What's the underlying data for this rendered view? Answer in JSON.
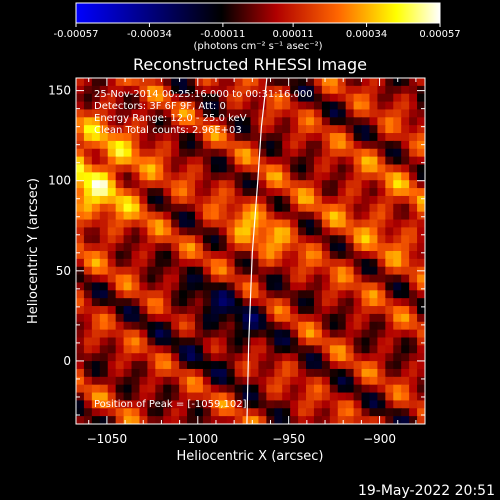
{
  "chart_data": {
    "type": "heatmap",
    "title": "Reconstructed RHESSI Image",
    "xlabel": "Heliocentric X (arcsec)",
    "ylabel": "Heliocentric Y (arcsec)",
    "xlim": [
      -1067,
      -875
    ],
    "ylim": [
      -35,
      157
    ],
    "x_ticks": [
      -1050,
      -1000,
      -950,
      -900
    ],
    "y_ticks": [
      0,
      50,
      100,
      150
    ],
    "colorbar": {
      "colormap": "blue-black-red-yellow-white (symmetric)",
      "range": [
        -0.00057,
        0.00057
      ],
      "tick_values": [
        -0.00057,
        -0.00034,
        -0.00011,
        0.00011,
        0.00034,
        0.00057
      ],
      "tick_labels": [
        "-0.00057",
        "-0.00034",
        "-0.00011",
        "0.00011",
        "0.00034",
        "0.00057"
      ],
      "unit_label": "(photons cm⁻² s⁻¹ asec⁻²)",
      "colors": [
        "#0000ff",
        "#000000",
        "#b00000",
        "#ff6600",
        "#ffff00",
        "#ffffff"
      ]
    },
    "annotations": [
      "25-Nov-2014 00:25:16.000 to 00:31:16.000",
      "Detectors: 3F 6F 9F, Att: 0",
      "Energy Range: 12.0 - 25.0 keV",
      "Clean     Total counts: 2.96E+03"
    ],
    "peak_label": "Position of Peak = [-1059,102]",
    "peak_position": [
      -1059,
      102
    ],
    "peak_value": 0.00057,
    "limb_curve": [
      [
        -973,
        -35
      ],
      [
        -972,
        10
      ],
      [
        -970,
        60
      ],
      [
        -967,
        100
      ],
      [
        -965,
        130
      ],
      [
        -962,
        157
      ]
    ],
    "footer": "19-May-2022 20:51",
    "grid": false,
    "legend": "colorbar at top"
  }
}
